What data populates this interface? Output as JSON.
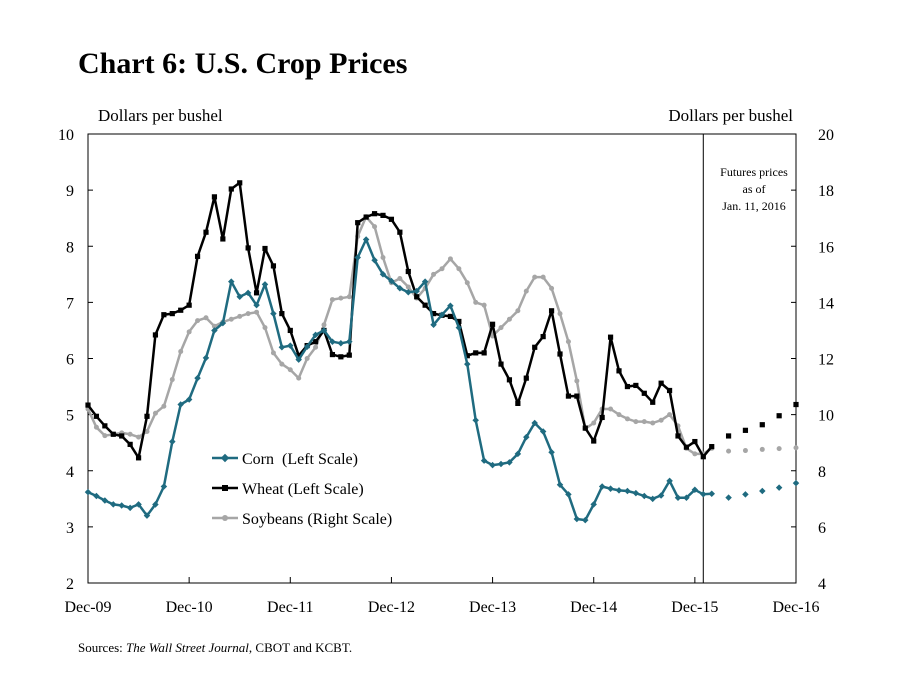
{
  "title": "Chart 6: U.S. Crop Prices",
  "source_prefix": "Sources: ",
  "source_italic": "The Wall Street Journal",
  "source_suffix": ", CBOT and KCBT.",
  "annotation": [
    "Futures prices",
    "as of",
    "Jan. 11, 2016"
  ],
  "colors": {
    "corn": "#1f6b80",
    "wheat": "#000000",
    "soybeans": "#a6a6a6"
  },
  "chart_data": {
    "type": "line",
    "xlabel": "",
    "x_tick_labels": [
      "Dec-09",
      "Dec-10",
      "Dec-11",
      "Dec-12",
      "Dec-13",
      "Dec-14",
      "Dec-15",
      "Dec-16"
    ],
    "x_range_months_from_dec09": [
      0,
      84
    ],
    "left_axis": {
      "label": "Dollars per bushel",
      "ylim": [
        2,
        10
      ],
      "ticks": [
        2,
        3,
        4,
        5,
        6,
        7,
        8,
        9,
        10
      ]
    },
    "right_axis": {
      "label": "Dollars per bushel",
      "ylim": [
        4,
        20
      ],
      "ticks": [
        4,
        6,
        8,
        10,
        12,
        14,
        16,
        18,
        20
      ]
    },
    "legend_position": "lower-left",
    "futures_divider_month": 73,
    "series": [
      {
        "name": "Corn  (Left Scale)",
        "key": "corn",
        "axis": "left",
        "marker": "diamond",
        "values": [
          3.62,
          3.55,
          3.47,
          3.4,
          3.38,
          3.34,
          3.4,
          3.2,
          3.4,
          3.72,
          4.52,
          5.18,
          5.27,
          5.65,
          6.01,
          6.5,
          6.63,
          7.37,
          7.1,
          7.17,
          6.95,
          7.32,
          6.8,
          6.2,
          6.23,
          5.98,
          6.21,
          6.42,
          6.5,
          6.3,
          6.27,
          6.3,
          7.8,
          8.12,
          7.75,
          7.5,
          7.38,
          7.25,
          7.18,
          7.2,
          7.37,
          6.6,
          6.78,
          6.94,
          6.55,
          5.9,
          4.9,
          4.18,
          4.1,
          4.12,
          4.15,
          4.3,
          4.6,
          4.85,
          4.7,
          4.33,
          3.75,
          3.58,
          3.14,
          3.12,
          3.4,
          3.72,
          3.68,
          3.65,
          3.64,
          3.6,
          3.55,
          3.5,
          3.56,
          3.82,
          3.52,
          3.52,
          3.66,
          3.58,
          3.59
        ],
        "futures": [
          [
            76,
            3.52
          ],
          [
            78,
            3.58
          ],
          [
            80,
            3.64
          ],
          [
            82,
            3.7
          ],
          [
            84,
            3.78
          ]
        ]
      },
      {
        "name": "Wheat (Left Scale)",
        "key": "wheat",
        "axis": "left",
        "marker": "square",
        "values": [
          5.17,
          4.97,
          4.8,
          4.65,
          4.62,
          4.47,
          4.23,
          4.97,
          6.42,
          6.78,
          6.8,
          6.86,
          6.95,
          7.82,
          8.25,
          8.88,
          8.13,
          9.02,
          9.13,
          7.97,
          7.17,
          7.96,
          7.65,
          6.8,
          6.5,
          6.05,
          6.23,
          6.3,
          6.5,
          6.07,
          6.03,
          6.06,
          8.42,
          8.52,
          8.58,
          8.55,
          8.48,
          8.25,
          7.55,
          7.1,
          6.95,
          6.8,
          6.77,
          6.75,
          6.66,
          6.05,
          6.1,
          6.1,
          6.61,
          5.9,
          5.62,
          5.2,
          5.65,
          6.2,
          6.39,
          6.85,
          6.08,
          5.33,
          5.33,
          4.76,
          4.53,
          4.95,
          6.38,
          5.78,
          5.5,
          5.52,
          5.38,
          5.22,
          5.56,
          5.43,
          4.62,
          4.42,
          4.52,
          4.25,
          4.43
        ],
        "futures": [
          [
            76,
            4.62
          ],
          [
            78,
            4.72
          ],
          [
            80,
            4.82
          ],
          [
            82,
            4.98
          ],
          [
            84,
            5.18
          ]
        ]
      },
      {
        "name": "Soybeans (Right Scale)",
        "key": "soybeans",
        "axis": "right",
        "marker": "circle",
        "values": [
          10.2,
          9.55,
          9.25,
          9.3,
          9.35,
          9.3,
          9.2,
          9.4,
          10.05,
          10.3,
          11.25,
          12.25,
          12.95,
          13.35,
          13.45,
          13.15,
          13.3,
          13.4,
          13.5,
          13.6,
          13.65,
          13.1,
          12.2,
          11.8,
          11.6,
          11.3,
          12.0,
          12.4,
          13.2,
          14.1,
          14.15,
          14.2,
          16.35,
          17.05,
          16.7,
          15.6,
          14.7,
          14.85,
          14.55,
          14.15,
          14.5,
          15.0,
          15.2,
          15.55,
          15.2,
          14.7,
          14.0,
          13.9,
          12.8,
          13.1,
          13.4,
          13.7,
          14.4,
          14.9,
          14.9,
          14.5,
          13.6,
          12.6,
          11.2,
          9.5,
          9.7,
          10.2,
          10.2,
          10.0,
          9.85,
          9.75,
          9.75,
          9.7,
          9.8,
          10.0,
          9.6,
          8.8,
          8.6,
          8.6,
          8.8
        ],
        "futures": [
          [
            76,
            8.7
          ],
          [
            78,
            8.72
          ],
          [
            80,
            8.76
          ],
          [
            82,
            8.79
          ],
          [
            84,
            8.82
          ]
        ]
      }
    ]
  }
}
